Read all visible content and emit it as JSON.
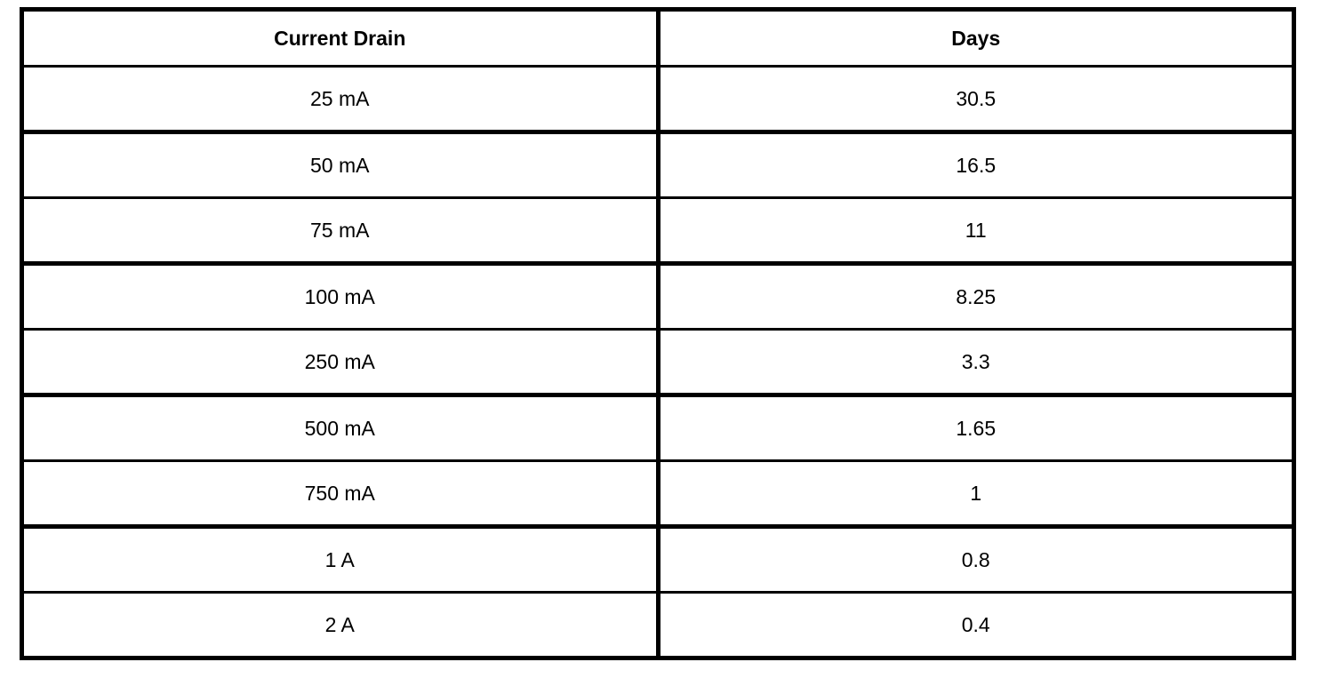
{
  "table": {
    "columns": [
      "Current Drain",
      "Days"
    ],
    "rows": [
      {
        "current": "25 mA",
        "days": "30.5"
      },
      {
        "current": "50 mA",
        "days": "16.5"
      },
      {
        "current": "75 mA",
        "days": "11"
      },
      {
        "current": "100 mA",
        "days": "8.25"
      },
      {
        "current": "250 mA",
        "days": "3.3"
      },
      {
        "current": "500 mA",
        "days": "1.65"
      },
      {
        "current": "750 mA",
        "days": "1"
      },
      {
        "current": "1 A",
        "days": "0.8"
      },
      {
        "current": "2 A",
        "days": "0.4"
      }
    ]
  },
  "colors": {
    "border": "#000000",
    "text": "#000000",
    "background": "#ffffff"
  }
}
